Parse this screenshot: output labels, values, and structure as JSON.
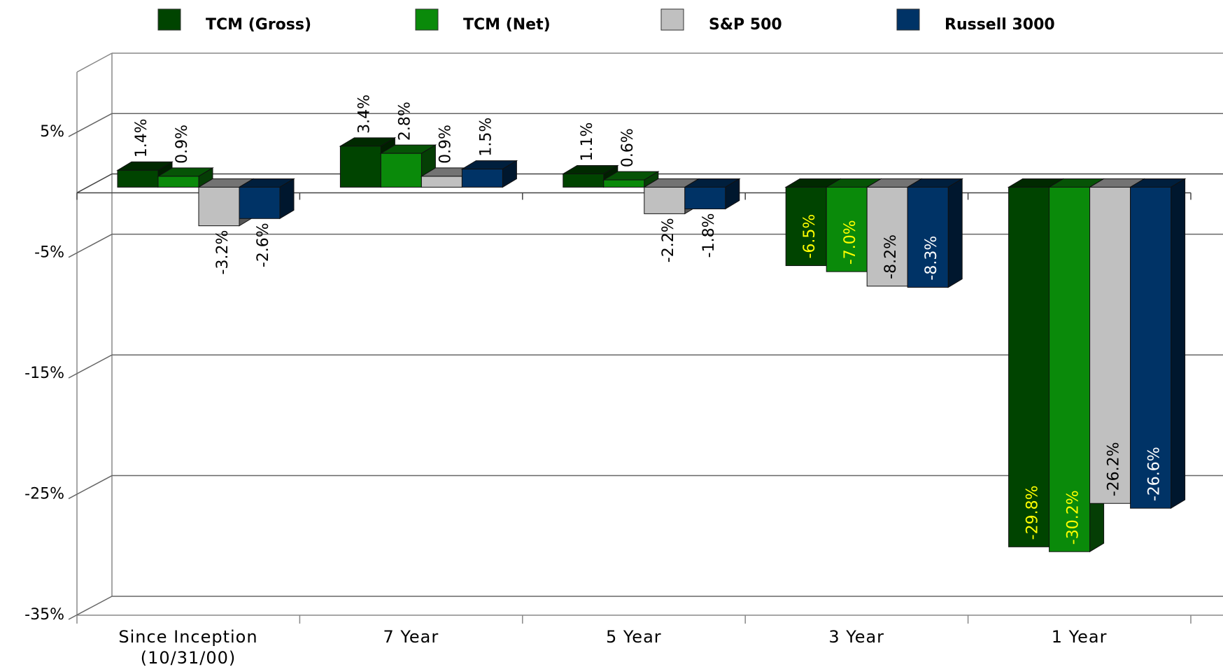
{
  "chart_data": {
    "type": "bar3d",
    "categories": [
      "Since Inception\n(10/31/00)",
      "7 Year",
      "5 Year",
      "3 Year",
      "1 Year"
    ],
    "series": [
      {
        "name": "TCM (Gross)",
        "color": "#004400",
        "label_color": "#ffff00",
        "values": [
          1.4,
          3.4,
          1.1,
          -6.5,
          -29.8
        ],
        "value_labels": [
          "1.4%",
          "3.4%",
          "1.1%",
          "-6.5%",
          "-29.8%"
        ]
      },
      {
        "name": "TCM (Net)",
        "color": "#0a8a0a",
        "label_color": "#ffff00",
        "values": [
          0.9,
          2.8,
          0.6,
          -7.0,
          -30.2
        ],
        "value_labels": [
          "0.9%",
          "2.8%",
          "0.6%",
          "-7.0%",
          "-30.2%"
        ]
      },
      {
        "name": "S&P 500",
        "color": "#c0c0c0",
        "label_color": "#000000",
        "values": [
          -3.2,
          0.9,
          -2.2,
          -8.2,
          -26.2
        ],
        "value_labels": [
          "-3.2%",
          "0.9%",
          "-2.2%",
          "-8.2%",
          "-26.2%"
        ]
      },
      {
        "name": "Russell 3000",
        "color": "#003366",
        "label_color": "#ffffff",
        "values": [
          -2.6,
          1.5,
          -1.8,
          -8.3,
          -26.6
        ],
        "value_labels": [
          "-2.6%",
          "1.5%",
          "-1.8%",
          "-8.3%",
          "-26.6%"
        ]
      }
    ],
    "ylim": [
      -35,
      10
    ],
    "yticks": [
      {
        "value": 5,
        "label": "5%"
      },
      {
        "value": -5,
        "label": "-5%"
      },
      {
        "value": -15,
        "label": "-15%"
      },
      {
        "value": -25,
        "label": "-25%"
      },
      {
        "value": -35,
        "label": "-35%"
      }
    ],
    "grid": true
  }
}
